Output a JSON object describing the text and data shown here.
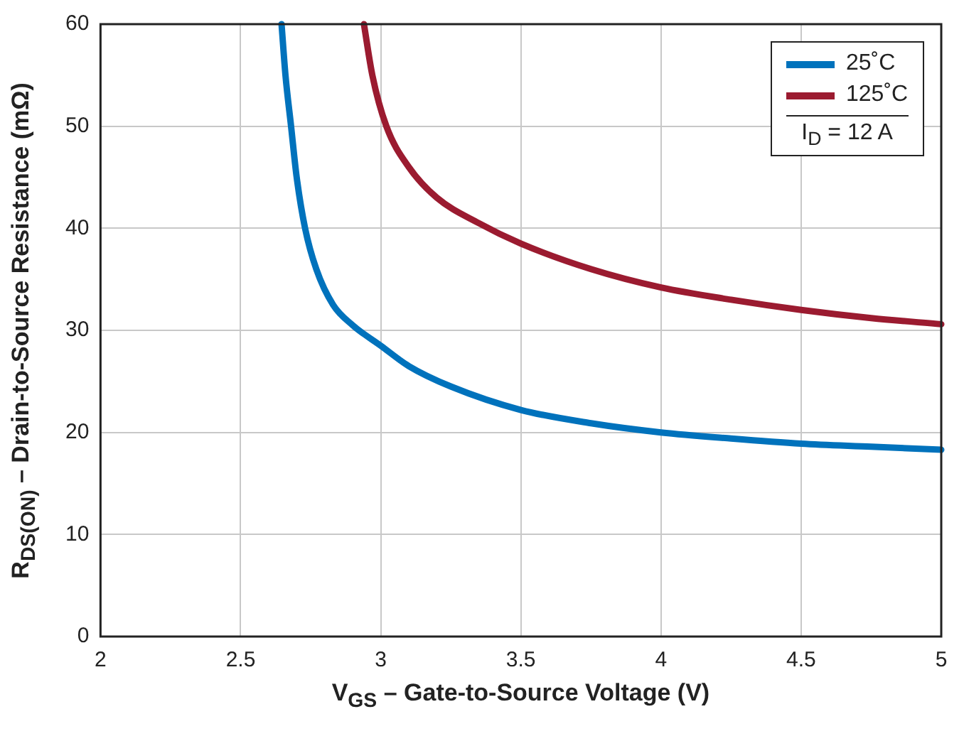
{
  "chart_data": {
    "type": "line",
    "xlabel": "V$_{GS}$ – Gate-to-Source Voltage (V)",
    "ylabel": "R$_{DS(ON)}$ – Drain-to-Source Resistance (mΩ)",
    "xlim": [
      2,
      5
    ],
    "xticks": [
      2,
      2.5,
      3,
      3.5,
      4,
      4.5,
      5
    ],
    "ylim": [
      0,
      60
    ],
    "yticks": [
      0,
      10,
      20,
      30,
      40,
      50,
      60
    ],
    "grid": true,
    "legend": "top right",
    "marker": "none",
    "line_style": "solid",
    "annotations": [
      "I$_{D}$ = 12 A"
    ],
    "series": [
      {
        "name": "25˚C",
        "color": "#0072bc",
        "x": [
          2.646,
          2.66,
          2.68,
          2.7,
          2.73,
          2.77,
          2.83,
          2.9,
          3,
          3.1,
          3.25,
          3.5,
          3.75,
          4,
          4.25,
          4.5,
          4.75,
          5
        ],
        "values": [
          60,
          55,
          50,
          45,
          40,
          36,
          32.5,
          30.5,
          28.5,
          26.5,
          24.5,
          22.2,
          20.9,
          20,
          19.4,
          18.9,
          18.6,
          18.3
        ]
      },
      {
        "name": "125˚C",
        "color": "#9b1b30",
        "x": [
          2.94,
          2.97,
          3.02,
          3.1,
          3.2,
          3.35,
          3.5,
          3.75,
          4,
          4.25,
          4.5,
          4.75,
          5
        ],
        "values": [
          60,
          55,
          50,
          46,
          43,
          40.5,
          38.5,
          36,
          34.2,
          33,
          32,
          31.2,
          30.6
        ]
      }
    ]
  }
}
